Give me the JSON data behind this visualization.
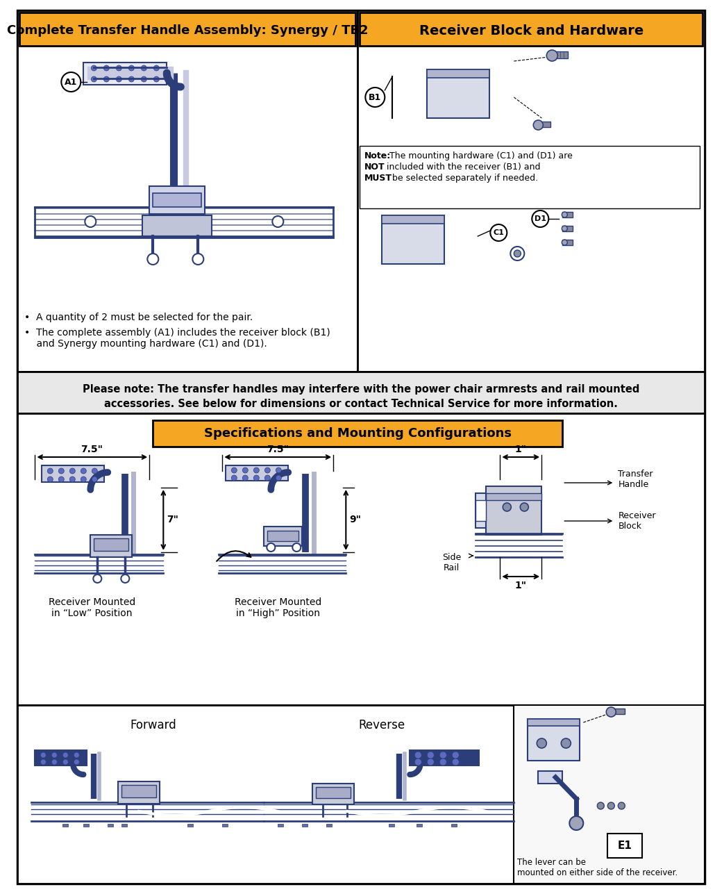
{
  "title_left": "Complete Transfer Handle Assembly: Synergy / TB2",
  "title_right": "Receiver Block and Hardware",
  "title_specs": "Specifications and Mounting Configurations",
  "warning_text": "Please note: The transfer handles may interfere with the power chair armrests and rail mounted\naccessories. See below for dimensions or contact Technical Service for more information.",
  "bullet1": "•  A quantity of 2 must be selected for the pair.",
  "bullet2": "•  The complete assembly (A1) includes the receiver block (B1)\n    and Synergy mounting hardware (C1) and (D1).",
  "note_text": "Note: The mounting hardware (C1) and (D1) are NOT\nincluded with the receiver (B1) and MUST be selected\nseparately if needed.",
  "label_a1": "A1",
  "label_b1": "B1",
  "label_c1": "C1",
  "label_d1": "D1",
  "label_e1": "E1",
  "dim1": "7.5\"",
  "dim2": "7.5\"",
  "dim3": "7\"",
  "dim4": "9\"",
  "dim5": "1\"",
  "dim6": "1\"",
  "label_low": "Receiver Mounted\nin “Low” Position",
  "label_high": "Receiver Mounted\nin “High” Position",
  "label_forward": "Forward",
  "label_reverse": "Reverse",
  "label_transfer_handle": "Transfer\nHandle",
  "label_receiver_block": "Receiver\nBlock",
  "label_side_rail": "Side\nRail",
  "label_lever": "The lever can be\nmounted on either side of the receiver.",
  "orange_color": "#F5A623",
  "blue_dark": "#1a237e",
  "line_color": "#2c3e7a",
  "bg_color": "#ffffff"
}
